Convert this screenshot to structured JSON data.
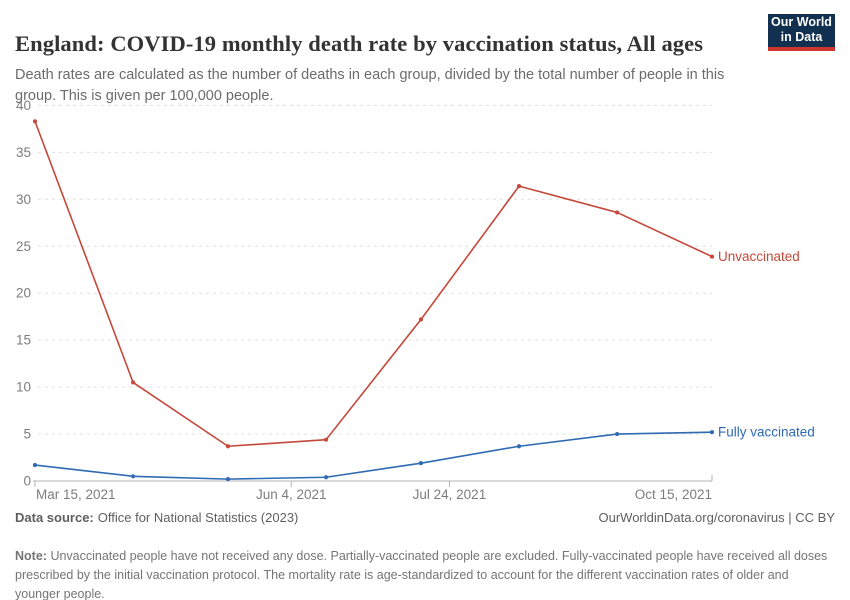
{
  "header": {
    "title": "England: COVID-19 monthly death rate by vaccination status, All ages"
  },
  "subtitle": "Death rates are calculated as the number of deaths in each group, divided by the total number of people in this group. This is given per 100,000 people.",
  "logo": {
    "line1": "Our World",
    "line2": "in Data"
  },
  "footer": {
    "source_label": "Data source:",
    "source_text": "Office for National Statistics (2023)",
    "credit": "OurWorldinData.org/coronavirus | CC BY",
    "note_label": "Note:",
    "note_text": "Unvaccinated people have not received any dose. Partially-vaccinated people are excluded. Fully-vaccinated people have received all doses prescribed by the initial vaccination protocol. The mortality rate is age-standardized to account for the different vaccination rates of older and younger people."
  },
  "chart_data": {
    "type": "line",
    "title": "England: COVID-19 monthly death rate by vaccination status, All ages",
    "ylabel": "",
    "xlabel": "",
    "ylim": [
      0,
      40
    ],
    "y_ticks": [
      0,
      5,
      10,
      15,
      20,
      25,
      30,
      35,
      40
    ],
    "grid": "dashed horizontal gridlines",
    "legend_position": "labels at line ends (right)",
    "x_days": [
      0,
      31,
      61,
      92,
      122,
      153,
      184,
      214
    ],
    "x_point_dates": [
      "Mar 15, 2021",
      "Apr 15, 2021",
      "May 15, 2021",
      "Jun 15, 2021",
      "Jul 15, 2021",
      "Aug 15, 2021",
      "Sep 15, 2021",
      "Oct 15, 2021"
    ],
    "x_ticks": [
      {
        "day": 0,
        "label": "Mar 15, 2021",
        "align": "start"
      },
      {
        "day": 81,
        "label": "Jun 4, 2021",
        "align": "middle"
      },
      {
        "day": 131,
        "label": "Jul 24, 2021",
        "align": "middle"
      },
      {
        "day": 214,
        "label": "Oct 15, 2021",
        "align": "end"
      }
    ],
    "series": [
      {
        "name": "Unvaccinated",
        "color": "#c5483a",
        "values": [
          38.3,
          10.5,
          3.7,
          4.4,
          17.2,
          31.4,
          28.6,
          23.9
        ]
      },
      {
        "name": "Fully vaccinated",
        "color": "#2f6ab4",
        "values": [
          1.7,
          0.5,
          0.2,
          0.4,
          1.9,
          3.7,
          5.0,
          5.2
        ]
      }
    ]
  },
  "colors": {
    "title_text": "#333333",
    "subtitle_text": "#6b6b6b",
    "footer_text": "#5f5f5f",
    "note_text": "#757575",
    "tick_text": "#7d7d7d",
    "grid": "#e0e0e0",
    "axis": "#b3b3b3",
    "logo_bg": "#12304f",
    "logo_bar": "#ce352c"
  }
}
